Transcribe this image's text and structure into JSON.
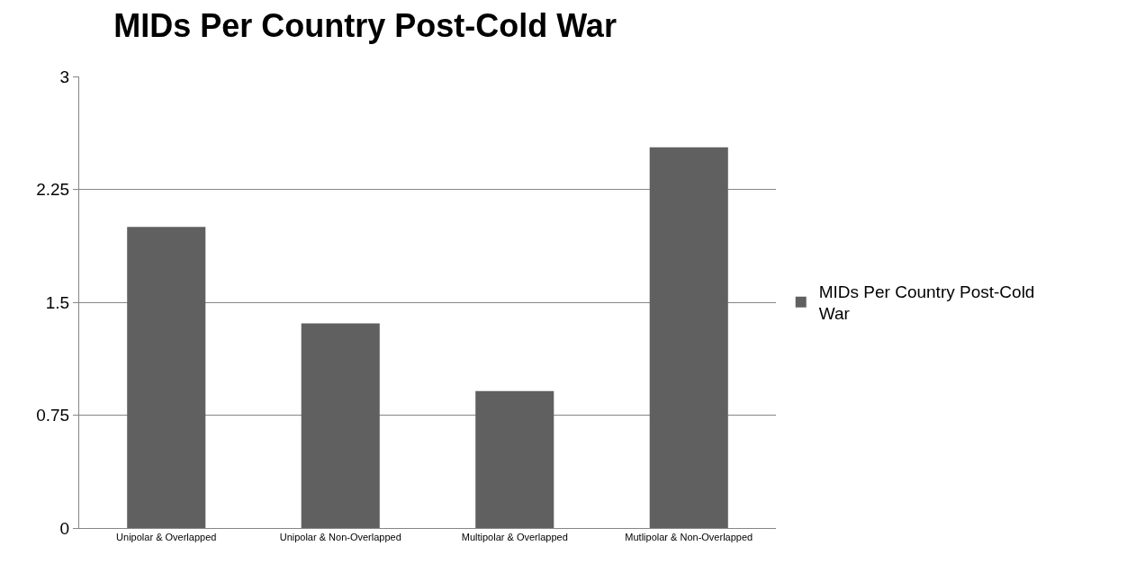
{
  "chart_data": {
    "type": "bar",
    "title": "MIDs Per Country Post-Cold War",
    "categories": [
      "Unipolar & Overlapped",
      "Unipolar & Non-Overlapped",
      "Multipolar & Overlapped",
      "Mutlipolar & Non-Overlapped"
    ],
    "series": [
      {
        "name": "MIDs Per Country Post-Cold War",
        "color": "#606060",
        "values": [
          2.0,
          1.36,
          0.91,
          2.53
        ]
      }
    ],
    "ylim": [
      0,
      3
    ],
    "yticks": [
      0,
      0.75,
      1.5,
      2.25,
      3
    ],
    "grid": "y",
    "legend": "right"
  }
}
